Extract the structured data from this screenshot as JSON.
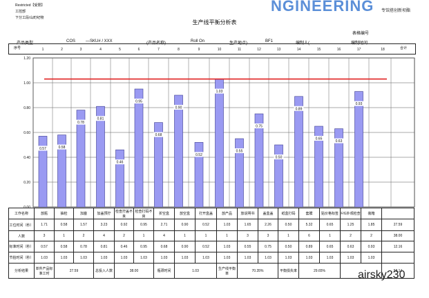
{
  "header": {
    "restricted": "Restricted【受限】",
    "dept": "工控部",
    "sub": "下分工段/山町纪物",
    "brand": "NGINEERING",
    "brand_sub": "专馆搭创新坝酯",
    "title": "生产线平衡分析表",
    "form_no_label": "表格编号",
    "product_type_label": "产品类型",
    "product_type_value": "COS",
    "sku": "—SKU# / XXX",
    "product_name_label": "(产品名称)",
    "roll_on": "Roll On",
    "location_label": "生产地点)",
    "location_value": "BF1",
    "editor_label": "编制人(",
    "edit_time_label": "编制时间"
  },
  "seq_label": "序号",
  "total_label": "合计",
  "stations": [
    "1",
    "2",
    "3",
    "4",
    "5",
    "6",
    "7",
    "8",
    "9",
    "10",
    "11",
    "12",
    "13",
    "14",
    "15",
    "16",
    "17",
    "18"
  ],
  "chart_data": {
    "type": "bar",
    "categories": [
      "放瓶",
      "抽检",
      "加塞",
      "加盖预拧",
      "检查拧盖不良",
      "检查打码不良",
      "折空盒",
      "放空盒",
      "打开盒盖",
      "放产品",
      "放说明书",
      "盖盒盖",
      "纸盒打码",
      "套膜",
      "贴价格标签",
      "F/G外观检查",
      "装箱"
    ],
    "values": [
      0.57,
      0.58,
      0.78,
      0.81,
      0.46,
      0.95,
      0.68,
      0.9,
      0.52,
      1.03,
      0.55,
      0.75,
      0.5,
      0.89,
      0.65,
      0.63,
      0.93
    ],
    "takt_line": 1.03,
    "ylim": [
      0,
      1.2
    ],
    "yticks": [
      "0.00",
      "0.20",
      "0.40",
      "0.60",
      "0.80",
      "1.00",
      "1.20"
    ],
    "value_labels": [
      "0.57",
      "0.58",
      "0.78",
      "0.81",
      "0.46",
      "0.95",
      "0.68",
      "0.90",
      "0.52",
      "1.03",
      "0.55",
      "0.75",
      "0.50",
      "0.89",
      "0.65",
      "0.63",
      "0.93"
    ],
    "colors": {
      "bar": "#9a9af2",
      "bar_edge": "#3b3b8f",
      "takt": "#e02020"
    }
  },
  "table": {
    "row_labels": {
      "process": "工作名称",
      "unit_time": "工位时间（秒）",
      "people": "人数",
      "std_time": "标准时间（秒）",
      "takt": "节拍时间（秒）",
      "analysis": "分析结果"
    },
    "process_names": [
      "放瓶",
      "抽检",
      "加塞",
      "加盖预拧",
      "检查拧盖不良",
      "检查打码不良",
      "折空盒",
      "放空盒",
      "打开盒盖",
      "放产品",
      "放说明书",
      "盖盒盖",
      "纸盒打码",
      "套膜",
      "贴价格标签",
      "F/G外观检查",
      "装箱"
    ],
    "unit_time": [
      "1.71",
      "0.58",
      "1.57",
      "3.23",
      "0.92",
      "0.95",
      "2.71",
      "0.90",
      "0.52",
      "1.03",
      "1.65",
      "2.26",
      "0.50",
      "5.32",
      "0.65",
      "1.25",
      "1.85"
    ],
    "unit_time_total": "27.59",
    "people": [
      "3",
      "1",
      "2",
      "4",
      "2",
      "1",
      "4",
      "1",
      "1",
      "1",
      "3",
      "3",
      "1",
      "6",
      "1",
      "2",
      "2"
    ],
    "people_total": "38.00",
    "std_time": [
      "0.57",
      "0.58",
      "0.78",
      "0.81",
      "0.46",
      "0.95",
      "0.68",
      "0.90",
      "0.52",
      "1.03",
      "0.55",
      "0.75",
      "0.50",
      "0.89",
      "0.65",
      "0.63",
      "0.93"
    ],
    "std_time_total": "12.16",
    "takt": [
      "1.03",
      "1.03",
      "1.03",
      "1.03",
      "1.03",
      "1.03",
      "1.03",
      "1.03",
      "1.03",
      "1.03",
      "1.03",
      "1.03",
      "1.03",
      "1.03",
      "1.03",
      "1.03",
      "1.03"
    ],
    "analysis": {
      "item1_label": "单件产品标准工时",
      "item1_value": "27.59",
      "item2_label": "总投入人数",
      "item2_value": "38.00",
      "item3_label": "瓶颈时间",
      "item3_value": "1.03",
      "item4_label": "生产线平衡率",
      "item4_value": "70.35%",
      "item5_label": "平衡损失率",
      "item5_value": "29.65%",
      "item6_value": "58.14"
    }
  },
  "watermark": "airsky230"
}
